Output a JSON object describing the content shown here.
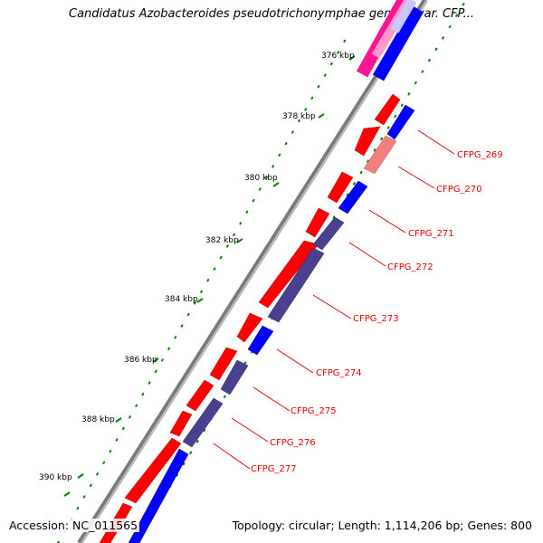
{
  "title": "Candidatus Azobacteroides pseudotrichonymphae genomovar. CFP...",
  "footer": {
    "accession": "Accession: NC_011565",
    "summary": "Topology: circular; Length: 1,114,206 bp; Genes: 800"
  },
  "kbp_ticks": [
    {
      "label": "376 kbp",
      "kbp": 376
    },
    {
      "label": "378 kbp",
      "kbp": 378
    },
    {
      "label": "380 kbp",
      "kbp": 380
    },
    {
      "label": "382 kbp",
      "kbp": 382
    },
    {
      "label": "384 kbp",
      "kbp": 384
    },
    {
      "label": "386 kbp",
      "kbp": 386
    },
    {
      "label": "388 kbp",
      "kbp": 388
    },
    {
      "label": "390 kbp",
      "kbp": 390
    }
  ],
  "gene_labels": [
    "CFPG_269",
    "CFPG_270",
    "CFPG_271",
    "CFPG_272",
    "CFPG_273",
    "CFPG_274",
    "CFPG_275",
    "CFPG_276",
    "CFPG_277"
  ],
  "colors": {
    "forward_cds": "#ff0000",
    "reverse_cds": "#0000ff",
    "reverse_alt": "#4b3f8f",
    "pseudo": "#f08080",
    "magenta": "#ff1493",
    "backbone": "#808080",
    "gc_dots": "#008000",
    "label": "#e60000"
  }
}
